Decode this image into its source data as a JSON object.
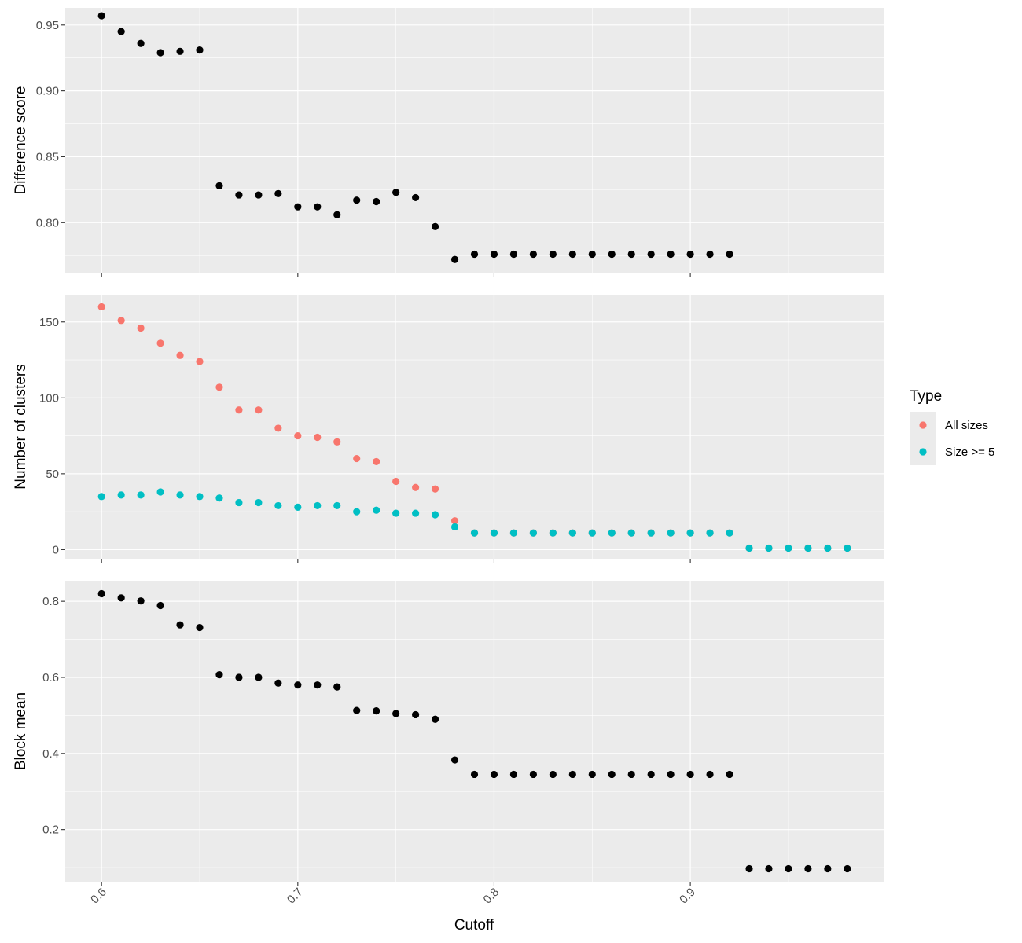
{
  "chart_data": {
    "type": "scatter",
    "xlabel": "Cutoff",
    "xlim": [
      0.5815,
      0.9985
    ],
    "xticks": [
      0.6,
      0.7,
      0.8,
      0.9
    ],
    "xtick_labels": [
      "0.6",
      "0.7",
      "0.8",
      "0.9"
    ],
    "x_minor_breaks": [
      0.65,
      0.75,
      0.85,
      0.95
    ],
    "grid": true,
    "background_color": "#ebebeb",
    "panels": [
      {
        "ylabel": "Difference score",
        "ylim": [
          0.762,
          0.963
        ],
        "yticks": [
          0.8,
          0.85,
          0.9,
          0.95
        ],
        "ytick_labels": [
          "0.80",
          "0.85",
          "0.90",
          "0.95"
        ],
        "show_x_tick_labels": false,
        "series": [
          {
            "color": "#000000",
            "x": [
              0.6,
              0.61,
              0.62,
              0.63,
              0.64,
              0.65,
              0.66,
              0.67,
              0.68,
              0.69,
              0.7,
              0.71,
              0.72,
              0.73,
              0.74,
              0.75,
              0.76,
              0.77,
              0.78,
              0.79,
              0.8,
              0.81,
              0.82,
              0.83,
              0.84,
              0.85,
              0.86,
              0.87,
              0.88,
              0.89,
              0.9,
              0.91,
              0.92
            ],
            "y": [
              0.957,
              0.945,
              0.936,
              0.929,
              0.93,
              0.931,
              0.828,
              0.821,
              0.821,
              0.822,
              0.812,
              0.812,
              0.806,
              0.817,
              0.816,
              0.823,
              0.819,
              0.797,
              0.772,
              0.776,
              0.776,
              0.776,
              0.776,
              0.776,
              0.776,
              0.776,
              0.776,
              0.776,
              0.776,
              0.776,
              0.776,
              0.776,
              0.776
            ]
          }
        ]
      },
      {
        "ylabel": "Number of clusters",
        "ylim": [
          -6,
          168
        ],
        "yticks": [
          0,
          50,
          100,
          150
        ],
        "ytick_labels": [
          "0",
          "50",
          "100",
          "150"
        ],
        "show_x_tick_labels": false,
        "series": [
          {
            "name": "All sizes",
            "color": "#f8766d",
            "x": [
              0.6,
              0.61,
              0.62,
              0.63,
              0.64,
              0.65,
              0.66,
              0.67,
              0.68,
              0.69,
              0.7,
              0.71,
              0.72,
              0.73,
              0.74,
              0.75,
              0.76,
              0.77,
              0.78,
              0.79,
              0.8,
              0.81,
              0.82,
              0.83,
              0.84,
              0.85,
              0.86,
              0.87,
              0.88,
              0.89,
              0.9,
              0.91,
              0.92,
              0.93,
              0.94,
              0.95,
              0.96,
              0.97,
              0.98
            ],
            "y": [
              160,
              151,
              146,
              136,
              128,
              124,
              107,
              92,
              92,
              80,
              75,
              74,
              71,
              60,
              58,
              45,
              41,
              40,
              19,
              11,
              11,
              11,
              11,
              11,
              11,
              11,
              11,
              11,
              11,
              11,
              11,
              11,
              11,
              1,
              1,
              1,
              1,
              1,
              1
            ]
          },
          {
            "name": "Size >= 5",
            "color": "#00bfc4",
            "x": [
              0.6,
              0.61,
              0.62,
              0.63,
              0.64,
              0.65,
              0.66,
              0.67,
              0.68,
              0.69,
              0.7,
              0.71,
              0.72,
              0.73,
              0.74,
              0.75,
              0.76,
              0.77,
              0.78,
              0.79,
              0.8,
              0.81,
              0.82,
              0.83,
              0.84,
              0.85,
              0.86,
              0.87,
              0.88,
              0.89,
              0.9,
              0.91,
              0.92,
              0.93,
              0.94,
              0.95,
              0.96,
              0.97,
              0.98
            ],
            "y": [
              35,
              36,
              36,
              38,
              36,
              35,
              34,
              31,
              31,
              29,
              28,
              29,
              29,
              25,
              26,
              24,
              24,
              23,
              15,
              11,
              11,
              11,
              11,
              11,
              11,
              11,
              11,
              11,
              11,
              11,
              11,
              11,
              11,
              1,
              1,
              1,
              1,
              1,
              1
            ]
          }
        ]
      },
      {
        "ylabel": "Block mean",
        "ylim": [
          0.063,
          0.854
        ],
        "yticks": [
          0.2,
          0.4,
          0.6,
          0.8
        ],
        "ytick_labels": [
          "0.2",
          "0.4",
          "0.6",
          "0.8"
        ],
        "show_x_tick_labels": true,
        "series": [
          {
            "color": "#000000",
            "x": [
              0.6,
              0.61,
              0.62,
              0.63,
              0.64,
              0.65,
              0.66,
              0.67,
              0.68,
              0.69,
              0.7,
              0.71,
              0.72,
              0.73,
              0.74,
              0.75,
              0.76,
              0.77,
              0.78,
              0.79,
              0.8,
              0.81,
              0.82,
              0.83,
              0.84,
              0.85,
              0.86,
              0.87,
              0.88,
              0.89,
              0.9,
              0.91,
              0.92,
              0.93,
              0.94,
              0.95,
              0.96,
              0.97,
              0.98
            ],
            "y": [
              0.82,
              0.809,
              0.801,
              0.789,
              0.738,
              0.731,
              0.607,
              0.6,
              0.6,
              0.585,
              0.58,
              0.58,
              0.575,
              0.513,
              0.512,
              0.505,
              0.502,
              0.49,
              0.383,
              0.345,
              0.345,
              0.345,
              0.345,
              0.345,
              0.345,
              0.345,
              0.345,
              0.345,
              0.345,
              0.345,
              0.345,
              0.345,
              0.345,
              0.097,
              0.097,
              0.097,
              0.097,
              0.097,
              0.097
            ]
          }
        ]
      }
    ],
    "legend": {
      "title": "Type",
      "position": "right",
      "entries": [
        {
          "label": "All sizes",
          "color": "#f8766d"
        },
        {
          "label": "Size >= 5",
          "color": "#00bfc4"
        }
      ]
    }
  }
}
